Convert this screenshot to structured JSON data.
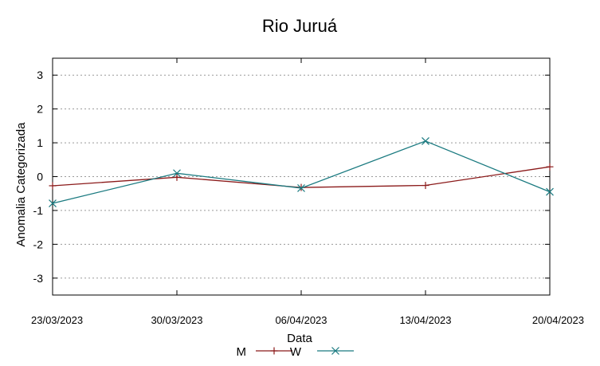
{
  "chart_data": {
    "type": "line",
    "title": "Rio Juruá",
    "xlabel": "Data",
    "ylabel": "Anomalia Categorizada",
    "categories": [
      "23/03/2023",
      "30/03/2023",
      "06/04/2023",
      "13/04/2023",
      "20/04/2023"
    ],
    "ylim": [
      -3.5,
      3.5
    ],
    "yticks": [
      -3,
      -2,
      -1,
      0,
      1,
      2,
      3
    ],
    "grid": true,
    "legend_position": "bottom",
    "series": [
      {
        "name": "M",
        "marker": "plus",
        "color": "#8b1a1a",
        "values": [
          -0.27,
          -0.02,
          -0.32,
          -0.26,
          0.29
        ]
      },
      {
        "name": "W",
        "marker": "x",
        "color": "#1a7a80",
        "values": [
          -0.79,
          0.1,
          -0.34,
          1.05,
          -0.45
        ]
      }
    ]
  }
}
